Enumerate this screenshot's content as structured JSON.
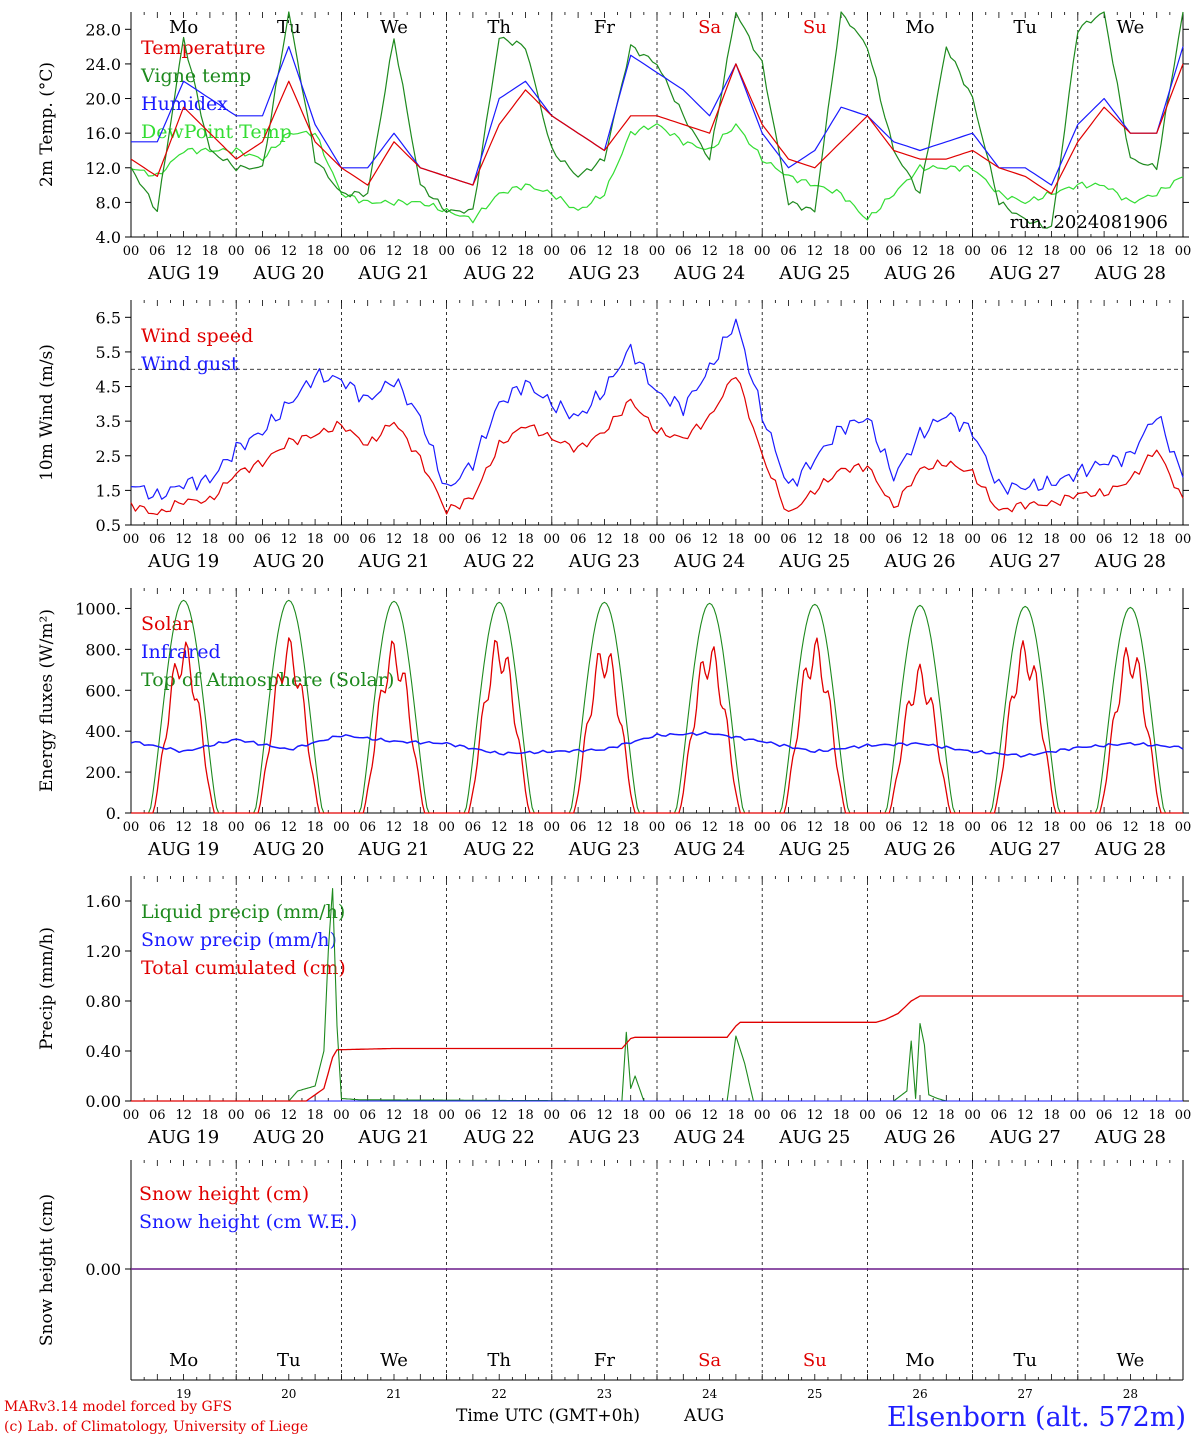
{
  "colors": {
    "red": "#e00000",
    "green": "#1e8a1e",
    "blue": "#1a1aff",
    "lightgreen": "#33dd33",
    "purple": "#6a1a8a",
    "weekend": "#e00000"
  },
  "days": [
    {
      "abbr": "Mo",
      "date": "AUG 19",
      "num": "19",
      "weekend": false
    },
    {
      "abbr": "Tu",
      "date": "AUG 20",
      "num": "20",
      "weekend": false
    },
    {
      "abbr": "We",
      "date": "AUG 21",
      "num": "21",
      "weekend": false
    },
    {
      "abbr": "Th",
      "date": "AUG 22",
      "num": "22",
      "weekend": false
    },
    {
      "abbr": "Fr",
      "date": "AUG 23",
      "num": "23",
      "weekend": false
    },
    {
      "abbr": "Sa",
      "date": "AUG 24",
      "num": "24",
      "weekend": true
    },
    {
      "abbr": "Su",
      "date": "AUG 25",
      "num": "25",
      "weekend": true
    },
    {
      "abbr": "Mo",
      "date": "AUG 26",
      "num": "26",
      "weekend": false
    },
    {
      "abbr": "Tu",
      "date": "AUG 27",
      "num": "27",
      "weekend": false
    },
    {
      "abbr": "We",
      "date": "AUG 28",
      "num": "28",
      "weekend": false
    }
  ],
  "hour_labels": [
    "00",
    "06",
    "12",
    "18"
  ],
  "last_hour_label": "00",
  "footer": {
    "model": "MARv3.14 model forced by GFS",
    "lab": "(c) Lab. of Climatology, University of Liege",
    "xlabel": "Time UTC (GMT+0h)",
    "month": "AUG",
    "station": "Elsenborn (alt. 572m)"
  },
  "chart_data": [
    {
      "type": "line",
      "ylabel": "2m Temp. (°C)",
      "ylim": [
        4,
        30
      ],
      "yticks": [
        4,
        8,
        12,
        16,
        20,
        24,
        28
      ],
      "ytick_labels": [
        "4.0",
        "8.0",
        "12.0",
        "16.0",
        "20.0",
        "24.0",
        "28.0"
      ],
      "grid": "vertical dashed at day boundaries",
      "day_labels_on_top": true,
      "annotation": "run: 2024081906",
      "legend": [
        {
          "text": "Temperature",
          "color": "red"
        },
        {
          "text": "Vigne temp",
          "color": "green"
        },
        {
          "text": "Humidex",
          "color": "blue"
        },
        {
          "text": "DewPoint Temp",
          "color": "lightgreen"
        }
      ],
      "x_hours": [
        0,
        6,
        12,
        18,
        24,
        30,
        36,
        42,
        48,
        54,
        60,
        66,
        72,
        78,
        84,
        90,
        96,
        102,
        108,
        114,
        120,
        126,
        132,
        138,
        144,
        150,
        156,
        162,
        168,
        174,
        180,
        186,
        192,
        198,
        204,
        210,
        216,
        222,
        228,
        234,
        240
      ],
      "series": [
        {
          "name": "Temperature",
          "color": "red",
          "values": [
            13,
            11,
            19,
            16,
            13,
            15,
            22,
            15,
            12,
            10,
            15,
            12,
            11,
            10,
            17,
            21,
            18,
            16,
            14,
            18,
            18,
            17,
            16,
            24,
            17,
            13,
            12,
            15,
            18,
            14,
            13,
            13,
            14,
            12,
            11,
            9,
            15,
            19,
            16,
            16,
            24
          ]
        },
        {
          "name": "Vigne temp",
          "color": "green",
          "values": [
            12,
            7,
            27,
            14,
            12,
            12,
            30,
            13,
            9,
            9,
            27,
            10,
            7,
            7,
            27,
            26,
            14,
            11,
            13,
            26,
            24,
            18,
            13,
            30,
            24,
            8,
            7,
            30,
            26,
            14,
            9,
            26,
            20,
            8,
            6,
            5,
            28,
            30,
            13,
            12,
            30
          ]
        },
        {
          "name": "Humidex",
          "color": "blue",
          "values": [
            15,
            15,
            22,
            20,
            18,
            18,
            26,
            17,
            12,
            12,
            16,
            12,
            11,
            10,
            20,
            22,
            18,
            16,
            14,
            25,
            23,
            21,
            18,
            24,
            16,
            12,
            14,
            19,
            18,
            15,
            14,
            15,
            16,
            12,
            12,
            10,
            17,
            20,
            16,
            16,
            26
          ]
        },
        {
          "name": "DewPoint Temp",
          "color": "lightgreen",
          "values": [
            12,
            11,
            14,
            14,
            14,
            13,
            16,
            16,
            9,
            8,
            8,
            8,
            7,
            6,
            9,
            10,
            9,
            7,
            9,
            16,
            17,
            15,
            14,
            17,
            13,
            11,
            10,
            9,
            6,
            9,
            12,
            12,
            12,
            9,
            8,
            9,
            10,
            10,
            8,
            9,
            11
          ]
        }
      ]
    },
    {
      "type": "line",
      "ylabel": "10m Wind (m/s)",
      "ylim": [
        0.5,
        7
      ],
      "yticks": [
        0.5,
        1.5,
        2.5,
        3.5,
        4.5,
        5.5,
        6.5
      ],
      "ytick_labels": [
        "0.5",
        "1.5",
        "2.5",
        "3.5",
        "4.5",
        "5.5",
        "6.5"
      ],
      "reference_line": 5.0,
      "legend": [
        {
          "text": "Wind speed",
          "color": "red"
        },
        {
          "text": "Wind gust",
          "color": "blue"
        }
      ],
      "x_hours": [
        0,
        6,
        12,
        18,
        24,
        30,
        36,
        42,
        48,
        54,
        60,
        66,
        72,
        78,
        84,
        90,
        96,
        102,
        108,
        114,
        120,
        126,
        132,
        138,
        144,
        150,
        156,
        162,
        168,
        174,
        180,
        186,
        192,
        198,
        204,
        210,
        216,
        222,
        228,
        234,
        240
      ],
      "series": [
        {
          "name": "Wind speed",
          "color": "red",
          "values": [
            1.1,
            0.8,
            1.2,
            1.2,
            2.0,
            2.3,
            2.9,
            3.1,
            3.4,
            2.8,
            3.5,
            2.4,
            0.9,
            1.3,
            2.8,
            3.4,
            3.0,
            2.7,
            3.2,
            4.1,
            3.2,
            3.0,
            3.6,
            4.9,
            2.5,
            0.8,
            1.5,
            2.1,
            2.2,
            1.0,
            2.1,
            2.3,
            2.0,
            0.9,
            1.1,
            1.1,
            1.4,
            1.4,
            1.8,
            2.7,
            1.2
          ]
        },
        {
          "name": "Wind gust",
          "color": "blue",
          "values": [
            1.7,
            1.3,
            1.7,
            1.8,
            2.7,
            3.2,
            4.0,
            4.8,
            4.7,
            4.1,
            4.7,
            3.6,
            1.5,
            2.3,
            4.0,
            4.6,
            4.0,
            3.6,
            4.4,
            5.6,
            4.3,
            3.9,
            5.0,
            6.4,
            3.7,
            1.6,
            2.4,
            3.3,
            3.6,
            1.9,
            3.1,
            3.7,
            3.2,
            1.6,
            1.6,
            1.7,
            2.0,
            2.3,
            2.5,
            3.7,
            1.9
          ]
        }
      ]
    },
    {
      "type": "line",
      "ylabel": "Energy fluxes (W/m²)",
      "ylim": [
        0,
        1100
      ],
      "yticks": [
        0,
        200,
        400,
        600,
        800,
        1000
      ],
      "ytick_labels": [
        "0.",
        "200.",
        "400.",
        "600.",
        "800.",
        "1000."
      ],
      "legend": [
        {
          "text": "Solar",
          "color": "red"
        },
        {
          "text": "Infrared",
          "color": "blue"
        },
        {
          "text": "Top of Atmosphere (Solar)",
          "color": "green"
        }
      ],
      "toa_daily_peaks": [
        1040,
        1040,
        1035,
        1030,
        1030,
        1025,
        1020,
        1015,
        1010,
        1005
      ],
      "solar_daily_peaks": [
        760,
        770,
        760,
        780,
        750,
        750,
        770,
        650,
        760,
        750
      ],
      "infrared_x_hours": [
        0,
        12,
        24,
        36,
        48,
        60,
        72,
        84,
        96,
        108,
        120,
        132,
        144,
        156,
        168,
        180,
        192,
        204,
        216,
        228,
        240
      ],
      "infrared_values": [
        350,
        300,
        360,
        310,
        380,
        350,
        340,
        290,
        300,
        310,
        380,
        390,
        350,
        300,
        330,
        340,
        300,
        280,
        320,
        340,
        320
      ]
    },
    {
      "type": "line",
      "ylabel": "Precip (mm/h)",
      "ylim": [
        0,
        1.8
      ],
      "yticks": [
        0,
        0.4,
        0.8,
        1.2,
        1.6
      ],
      "ytick_labels": [
        "0.00",
        "0.40",
        "0.80",
        "1.20",
        "1.60"
      ],
      "legend": [
        {
          "text": "Liquid precip (mm/h)",
          "color": "green"
        },
        {
          "text": "Snow precip (mm/h)",
          "color": "blue"
        },
        {
          "text": "Total cumulated (cm)",
          "color": "red"
        }
      ],
      "liquid_points": [
        [
          0,
          0
        ],
        [
          36,
          0
        ],
        [
          38,
          0.08
        ],
        [
          42,
          0.12
        ],
        [
          44,
          0.4
        ],
        [
          45,
          1.2
        ],
        [
          46,
          1.7
        ],
        [
          47,
          0.6
        ],
        [
          48,
          0.02
        ],
        [
          52,
          0.01
        ],
        [
          112,
          0
        ],
        [
          113,
          0.55
        ],
        [
          114,
          0.1
        ],
        [
          115,
          0.2
        ],
        [
          117,
          0
        ],
        [
          136,
          0
        ],
        [
          138,
          0.52
        ],
        [
          140,
          0.3
        ],
        [
          142,
          0
        ],
        [
          174,
          0
        ],
        [
          177,
          0.08
        ],
        [
          178,
          0.48
        ],
        [
          179,
          0.02
        ],
        [
          180,
          0.62
        ],
        [
          181,
          0.45
        ],
        [
          182,
          0.05
        ],
        [
          184,
          0.02
        ],
        [
          186,
          0
        ],
        [
          240,
          0
        ]
      ],
      "cumulated_points": [
        [
          0,
          0
        ],
        [
          40,
          0
        ],
        [
          44,
          0.1
        ],
        [
          46,
          0.35
        ],
        [
          47,
          0.41
        ],
        [
          60,
          0.42
        ],
        [
          112,
          0.42
        ],
        [
          114,
          0.5
        ],
        [
          115,
          0.51
        ],
        [
          136,
          0.51
        ],
        [
          138,
          0.6
        ],
        [
          139,
          0.63
        ],
        [
          170,
          0.63
        ],
        [
          172,
          0.65
        ],
        [
          175,
          0.7
        ],
        [
          178,
          0.8
        ],
        [
          180,
          0.84
        ],
        [
          240,
          0.84
        ]
      ]
    },
    {
      "type": "line",
      "ylabel": "Snow height (cm)",
      "yticks": [
        0
      ],
      "ytick_labels": [
        "0.00"
      ],
      "legend": [
        {
          "text": "Snow height (cm)",
          "color": "red"
        },
        {
          "text": "Snow height (cm W.E.)",
          "color": "blue"
        }
      ],
      "series": [
        {
          "name": "Snow height (cm)",
          "color": "red",
          "constant": 0
        },
        {
          "name": "Snow height (cm W.E.)",
          "color": "blue",
          "constant": 0
        }
      ]
    }
  ]
}
